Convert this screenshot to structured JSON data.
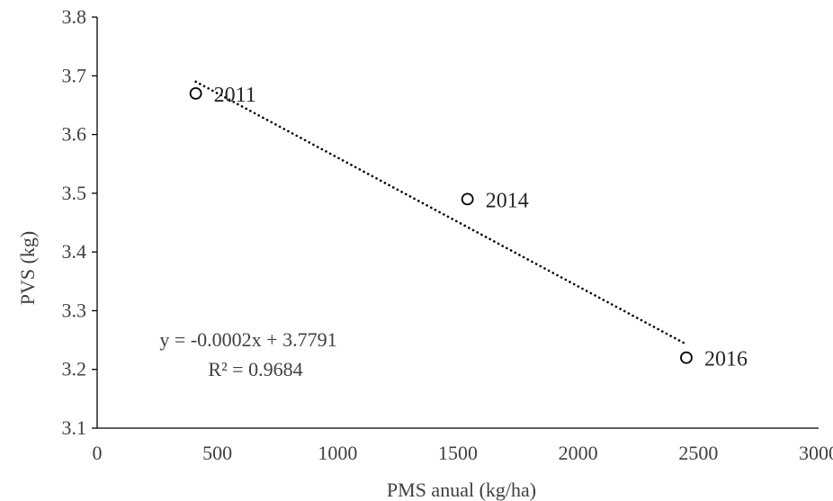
{
  "chart_data": {
    "type": "scatter",
    "title": "",
    "xlabel": "PMS anual (kg/ha)",
    "ylabel": "PVS (kg)",
    "xlim": [
      0,
      3000
    ],
    "ylim": [
      3.1,
      3.8
    ],
    "x_ticks": [
      "0",
      "500",
      "1000",
      "1500",
      "2000",
      "2500",
      "3000"
    ],
    "y_ticks": [
      "3.1",
      "3.2",
      "3.3",
      "3.4",
      "3.5",
      "3.6",
      "3.7",
      "3.8"
    ],
    "grid": false,
    "legend": "none",
    "series": [
      {
        "points": [
          {
            "x": 410,
            "y": 3.67,
            "label": "2011"
          },
          {
            "x": 1540,
            "y": 3.49,
            "label": "2014"
          },
          {
            "x": 2450,
            "y": 3.22,
            "label": "2016"
          }
        ],
        "marker": "open-circle",
        "color": "#000000"
      }
    ],
    "trendline": {
      "style": "dotted",
      "color": "#000000",
      "slope": -0.0002,
      "intercept": 3.7791,
      "x_range": [
        410,
        2440
      ],
      "y_range": [
        3.69,
        3.245
      ],
      "equation": "y = -0.0002x + 3.7791",
      "r_squared": "R² = 0.9684"
    },
    "axis_color": "#000000",
    "text_color": "#404040"
  }
}
